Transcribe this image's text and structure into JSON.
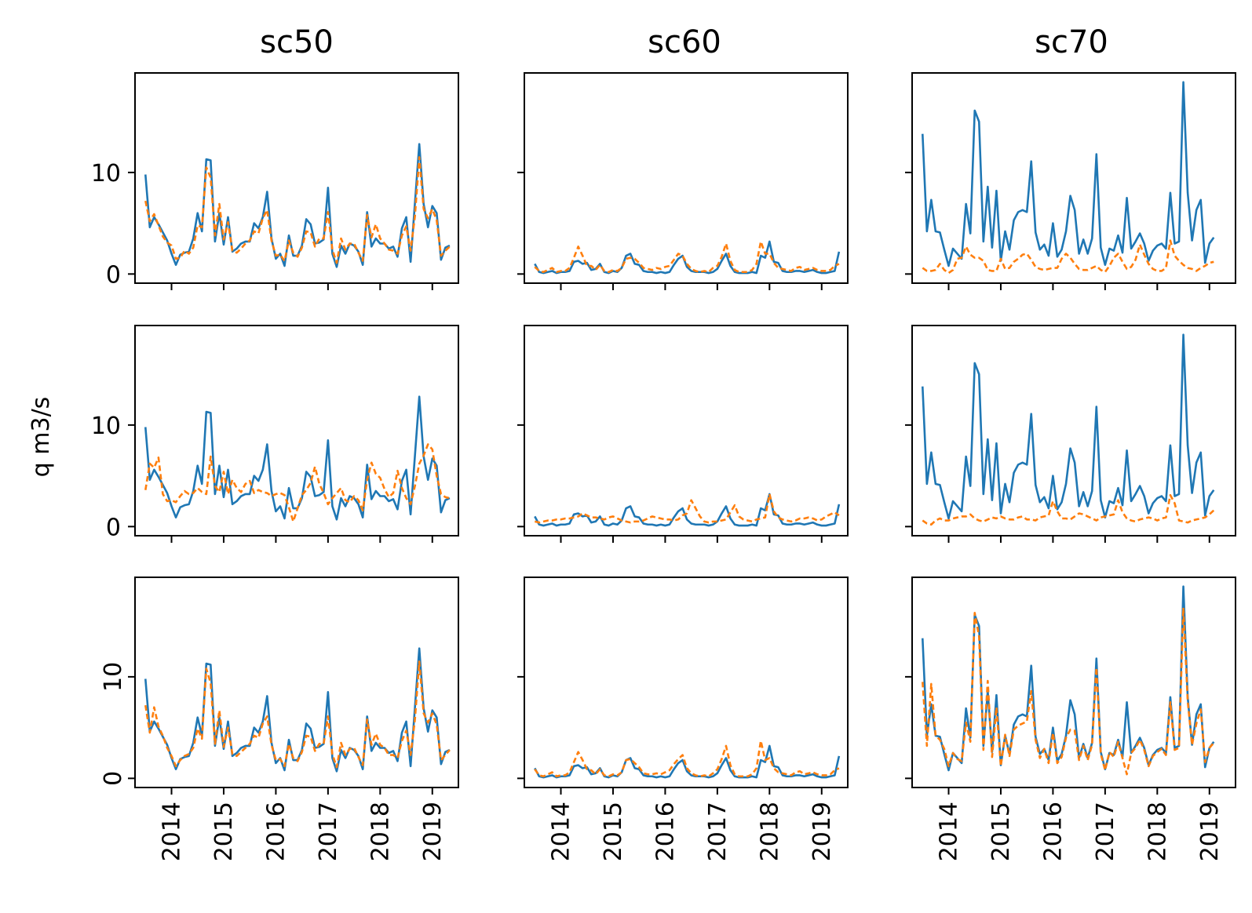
{
  "chart_data": {
    "type": "line",
    "layout": "3x3 grid",
    "ylabel": "q m3/s",
    "column_titles": [
      "sc50",
      "sc60",
      "sc70"
    ],
    "xticks": [
      "2014",
      "2015",
      "2016",
      "2017",
      "2018",
      "2019"
    ],
    "yticks": [
      0,
      10
    ],
    "xlim": [
      2013.3,
      2019.5
    ],
    "ylim": [
      -0.9,
      19.8
    ],
    "colors": {
      "observed": "#1f77b4",
      "simulated": "#ff7f0e"
    },
    "series_styles": {
      "observed": "solid",
      "simulated": "dashed"
    },
    "x_start": 2013.5,
    "x_step_months": 1,
    "observed": {
      "sc50": [
        9.8,
        4.6,
        5.6,
        4.9,
        4.1,
        3.3,
        2.0,
        0.9,
        1.9,
        2.1,
        2.2,
        3.5,
        6.0,
        4.2,
        11.3,
        11.2,
        3.2,
        6.0,
        2.9,
        5.6,
        2.2,
        2.5,
        3.0,
        3.2,
        3.2,
        5.0,
        4.5,
        5.6,
        8.1,
        3.5,
        1.5,
        2.0,
        0.8,
        3.8,
        1.8,
        1.8,
        2.8,
        5.4,
        4.9,
        3.0,
        3.1,
        3.4,
        8.5,
        2.0,
        0.7,
        2.8,
        2.0,
        3.0,
        2.8,
        2.2,
        0.9,
        6.1,
        2.7,
        3.5,
        3.0,
        3.0,
        2.5,
        2.7,
        1.7,
        4.5,
        5.6,
        1.2,
        7.0,
        12.8,
        6.9,
        4.6,
        6.7,
        6.0,
        1.4,
        2.6,
        2.8
      ],
      "sc60": [
        1.0,
        0.2,
        0.1,
        0.2,
        0.3,
        0.1,
        0.2,
        0.2,
        0.3,
        1.2,
        1.3,
        1.0,
        1.1,
        0.4,
        0.5,
        1.0,
        0.2,
        0.1,
        0.3,
        0.2,
        0.6,
        1.8,
        2.0,
        1.0,
        0.9,
        0.3,
        0.2,
        0.2,
        0.1,
        0.2,
        0.1,
        0.2,
        0.9,
        1.5,
        1.8,
        0.7,
        0.3,
        0.2,
        0.2,
        0.2,
        0.1,
        0.2,
        0.5,
        1.3,
        2.0,
        0.8,
        0.2,
        0.1,
        0.1,
        0.1,
        0.2,
        0.1,
        1.8,
        1.6,
        3.2,
        1.2,
        1.1,
        0.3,
        0.2,
        0.2,
        0.3,
        0.3,
        0.2,
        0.3,
        0.4,
        0.2,
        0.1,
        0.1,
        0.2,
        0.3,
        2.2
      ],
      "sc70": [
        13.8,
        4.2,
        7.3,
        4.2,
        4.1,
        2.4,
        0.8,
        2.5,
        2.0,
        1.5,
        6.9,
        4.0,
        16.1,
        15.0,
        3.2,
        8.6,
        2.6,
        8.2,
        1.3,
        4.2,
        2.4,
        5.3,
        6.1,
        6.3,
        6.1,
        11.1,
        4.1,
        2.4,
        2.9,
        1.8,
        5.0,
        1.7,
        2.4,
        4.2,
        7.7,
        6.3,
        2.0,
        3.4,
        2.0,
        3.5,
        11.8,
        2.6,
        0.9,
        2.5,
        2.3,
        3.8,
        2.1,
        7.5,
        2.5,
        3.2,
        4.0,
        3.0,
        1.3,
        2.3,
        2.8,
        3.0,
        2.5,
        8.0,
        3.0,
        3.2,
        18.9,
        8.0,
        3.3,
        6.3,
        7.3,
        1.1,
        3.0,
        3.6
      ],
      "sc70_note": ""
    },
    "simulated": {
      "r1c1": [
        7.2,
        5.2,
        5.9,
        4.8,
        3.7,
        3.1,
        2.8,
        1.5,
        1.6,
        2.3,
        2.0,
        2.6,
        4.8,
        4.6,
        10.5,
        9.5,
        3.8,
        6.9,
        3.4,
        5.1,
        2.3,
        2.1,
        2.5,
        3.0,
        3.3,
        4.2,
        4.0,
        5.5,
        6.3,
        3.3,
        1.8,
        1.9,
        1.3,
        3.3,
        2.1,
        1.7,
        2.6,
        4.2,
        4.1,
        2.7,
        3.5,
        3.5,
        6.1,
        2.4,
        1.1,
        3.5,
        2.4,
        3.0,
        3.0,
        2.1,
        1.3,
        5.8,
        3.6,
        4.9,
        3.5,
        3.0,
        2.4,
        2.3,
        2.0,
        3.8,
        4.7,
        2.3,
        5.7,
        11.5,
        6.4,
        5.5,
        6.4,
        5.3,
        1.8,
        2.3,
        2.7
      ],
      "r1c2": [
        0.7,
        0.3,
        0.2,
        0.4,
        0.6,
        0.2,
        0.3,
        0.3,
        0.6,
        1.6,
        2.7,
        1.8,
        0.8,
        0.8,
        0.4,
        0.9,
        0.3,
        0.2,
        0.4,
        0.3,
        0.6,
        1.5,
        1.6,
        1.5,
        1.1,
        0.6,
        0.5,
        0.4,
        0.6,
        0.5,
        0.7,
        0.8,
        1.4,
        2.0,
        1.8,
        1.0,
        0.5,
        0.3,
        0.2,
        0.3,
        0.2,
        0.6,
        0.8,
        1.7,
        3.0,
        1.3,
        0.4,
        0.2,
        0.2,
        0.2,
        0.4,
        1.0,
        3.2,
        2.0,
        2.0,
        1.1,
        0.6,
        0.5,
        0.4,
        0.3,
        0.6,
        0.7,
        0.4,
        0.5,
        0.6,
        0.4,
        0.3,
        0.3,
        0.4,
        0.8,
        1.0
      ],
      "r1c3": [
        0.6,
        0.3,
        0.3,
        0.4,
        1.0,
        0.4,
        0.1,
        0.4,
        1.5,
        1.6,
        2.7,
        1.9,
        1.6,
        1.6,
        1.3,
        0.4,
        0.3,
        0.3,
        1.5,
        0.5,
        0.6,
        1.2,
        1.5,
        1.9,
        2.0,
        1.4,
        0.7,
        0.5,
        0.4,
        0.5,
        0.6,
        0.6,
        1.5,
        2.0,
        1.6,
        1.0,
        0.5,
        0.4,
        0.4,
        0.6,
        0.8,
        0.4,
        0.2,
        0.8,
        1.6,
        2.0,
        1.2,
        0.5,
        0.7,
        1.4,
        2.9,
        1.9,
        1.0,
        0.5,
        0.3,
        0.3,
        0.6,
        3.3,
        1.8,
        1.3,
        0.9,
        0.6,
        0.5,
        0.3,
        0.6,
        0.8,
        1.1,
        1.2
      ],
      "r2c1": [
        3.6,
        6.2,
        5.8,
        6.8,
        3.2,
        2.5,
        2.6,
        2.4,
        3.0,
        3.5,
        3.2,
        3.3,
        3.8,
        3.4,
        3.2,
        6.9,
        4.0,
        3.4,
        5.4,
        3.2,
        4.6,
        3.8,
        3.4,
        4.2,
        4.5,
        3.3,
        3.6,
        3.4,
        3.3,
        3.0,
        3.2,
        3.3,
        3.1,
        1.9,
        0.5,
        1.8,
        3.1,
        3.6,
        4.3,
        5.9,
        4.2,
        3.3,
        2.2,
        2.8,
        3.3,
        3.8,
        2.6,
        2.4,
        3.0,
        2.6,
        1.6,
        4.6,
        6.3,
        5.2,
        4.8,
        3.7,
        2.9,
        3.3,
        5.5,
        3.8,
        2.8,
        2.2,
        4.0,
        6.2,
        7.0,
        8.1,
        7.6,
        5.0,
        3.2,
        2.9,
        2.8
      ],
      "r2c2": [
        0.5,
        0.4,
        0.5,
        0.6,
        0.6,
        0.7,
        0.7,
        0.8,
        0.8,
        0.9,
        1.0,
        1.3,
        1.1,
        0.9,
        0.9,
        0.8,
        0.7,
        0.9,
        1.0,
        0.8,
        0.6,
        0.5,
        0.4,
        0.5,
        0.5,
        0.6,
        0.8,
        1.0,
        0.9,
        0.8,
        0.7,
        0.7,
        0.6,
        0.7,
        1.1,
        1.3,
        2.6,
        1.8,
        1.0,
        0.5,
        0.4,
        0.5,
        0.5,
        0.6,
        0.7,
        1.4,
        2.1,
        1.0,
        0.7,
        0.6,
        0.5,
        0.7,
        0.8,
        0.9,
        3.2,
        1.5,
        0.9,
        0.7,
        0.6,
        0.5,
        0.6,
        0.8,
        0.8,
        0.9,
        0.8,
        0.6,
        0.7,
        1.0,
        1.2,
        1.4,
        1.1
      ],
      "r2c3": [
        0.6,
        0.3,
        0.2,
        0.6,
        0.8,
        0.6,
        0.6,
        0.8,
        0.9,
        1.0,
        1.0,
        1.2,
        0.8,
        0.6,
        0.5,
        0.7,
        0.9,
        0.8,
        1.0,
        0.8,
        0.7,
        0.7,
        0.9,
        1.0,
        0.7,
        0.7,
        0.6,
        0.9,
        1.0,
        1.1,
        2.5,
        1.5,
        0.8,
        0.8,
        0.7,
        1.0,
        1.3,
        1.2,
        1.0,
        0.8,
        0.6,
        0.9,
        1.0,
        1.1,
        1.2,
        2.6,
        1.4,
        0.8,
        0.6,
        0.5,
        0.7,
        0.8,
        0.9,
        0.8,
        0.6,
        0.8,
        0.9,
        3.1,
        2.3,
        0.6,
        0.5,
        0.4,
        0.6,
        0.7,
        0.8,
        0.9,
        1.2,
        1.6
      ],
      "r3c1": [
        7.2,
        4.5,
        7.0,
        5.1,
        4.2,
        3.0,
        2.2,
        1.2,
        1.8,
        2.2,
        2.4,
        3.0,
        4.9,
        3.9,
        10.8,
        9.4,
        3.4,
        6.7,
        3.1,
        5.0,
        2.4,
        2.2,
        2.6,
        3.0,
        3.4,
        4.2,
        4.0,
        5.4,
        6.1,
        3.3,
        1.8,
        1.9,
        1.2,
        3.4,
        2.0,
        1.7,
        2.6,
        4.2,
        4.1,
        2.7,
        3.4,
        3.4,
        6.1,
        2.4,
        1.1,
        3.5,
        2.3,
        2.9,
        3.0,
        2.1,
        1.3,
        5.8,
        3.3,
        4.4,
        3.3,
        3.0,
        2.3,
        2.3,
        2.0,
        3.7,
        4.7,
        2.3,
        5.8,
        11.5,
        6.4,
        5.5,
        6.4,
        5.3,
        1.8,
        2.3,
        2.8
      ],
      "r3c2": [
        0.9,
        0.3,
        0.2,
        0.4,
        0.6,
        0.2,
        0.3,
        0.3,
        0.6,
        1.6,
        2.6,
        1.8,
        0.9,
        0.8,
        0.4,
        0.9,
        0.3,
        0.2,
        0.4,
        0.3,
        0.6,
        1.8,
        1.9,
        1.5,
        1.1,
        0.5,
        0.4,
        0.4,
        0.5,
        0.4,
        0.6,
        0.8,
        1.4,
        1.9,
        2.3,
        1.0,
        0.5,
        0.3,
        0.2,
        0.3,
        0.2,
        0.5,
        0.9,
        1.9,
        3.2,
        1.3,
        0.4,
        0.2,
        0.2,
        0.2,
        0.4,
        1.0,
        3.7,
        1.8,
        2.0,
        1.0,
        0.6,
        0.5,
        0.4,
        0.3,
        0.6,
        0.7,
        0.4,
        0.5,
        0.6,
        0.4,
        0.3,
        0.3,
        0.4,
        0.8,
        1.0
      ],
      "r3c3": [
        9.5,
        3.2,
        9.3,
        4.2,
        3.8,
        2.9,
        1.2,
        2.5,
        1.9,
        1.7,
        5.5,
        3.6,
        16.3,
        14.0,
        2.8,
        9.6,
        2.1,
        7.0,
        1.2,
        4.3,
        2.2,
        4.8,
        5.2,
        5.4,
        5.6,
        8.6,
        3.8,
        2.0,
        2.9,
        1.5,
        4.5,
        1.5,
        2.1,
        4.0,
        4.8,
        4.7,
        1.8,
        3.2,
        1.8,
        3.3,
        10.9,
        2.4,
        0.8,
        2.6,
        2.1,
        3.6,
        2.0,
        0.4,
        2.5,
        3.0,
        3.8,
        2.8,
        1.2,
        2.2,
        2.6,
        2.9,
        2.3,
        7.5,
        2.8,
        3.0,
        16.8,
        7.6,
        3.3,
        5.4,
        6.8,
        1.6,
        3.0,
        3.5
      ]
    }
  }
}
